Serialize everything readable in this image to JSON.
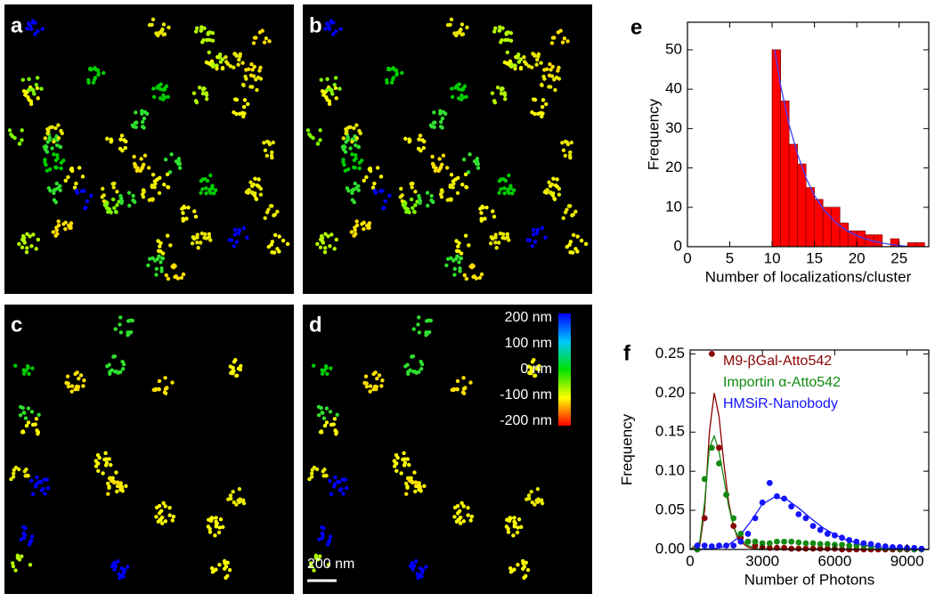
{
  "panels": {
    "a": "a",
    "b": "b",
    "c": "c",
    "d": "d"
  },
  "colorbar": {
    "labels": [
      "200 nm",
      "100 nm",
      "0 nm",
      "-100 nm",
      "-200 nm"
    ]
  },
  "scale_bar": "200 nm",
  "chart_data": [
    {
      "type": "histogram",
      "panel_label": "e",
      "xlabel": "Number of localizations/cluster",
      "ylabel": "Frequency",
      "color": "#ff0000",
      "bins": [
        10,
        11,
        12,
        13,
        14,
        15,
        16,
        17,
        18,
        19,
        20,
        21,
        22,
        23,
        24,
        25,
        26,
        27,
        28
      ],
      "values": [
        50,
        37,
        26,
        21,
        15,
        12,
        10,
        10,
        6,
        4,
        4,
        3,
        3,
        0,
        2,
        0,
        1,
        1
      ],
      "fit": {
        "color": "#4040ff",
        "x": [
          10.3,
          11,
          12,
          13,
          14,
          15,
          16,
          17,
          18,
          19,
          20,
          21,
          22,
          23,
          24,
          25,
          26
        ],
        "values": [
          50,
          41,
          31,
          23.5,
          17.5,
          13,
          9.7,
          7.2,
          5.3,
          3.9,
          2.8,
          2,
          1.4,
          0.9,
          0.6,
          0.3,
          0.1
        ]
      },
      "xlim": [
        0,
        28.5
      ],
      "xticks": [
        0,
        5,
        10,
        15,
        20,
        25
      ],
      "ylim": [
        0,
        57
      ],
      "yticks": [
        0,
        10,
        20,
        30,
        40,
        50
      ]
    },
    {
      "type": "scatter",
      "panel_label": "f",
      "xlabel": "Number of Photons",
      "ylabel": "Frequency",
      "series": [
        {
          "name": "M9-βGal-Atto542",
          "color": "#8b0000",
          "x": [
            300,
            600,
            900,
            1200,
            1500,
            1800,
            2100,
            2400,
            2700,
            3000,
            3300,
            3600,
            3900,
            4200,
            4500,
            4800,
            5100,
            5400,
            5700,
            6000,
            6300,
            6600,
            6900,
            7200,
            7500,
            7800,
            8100,
            8400,
            8700,
            9000,
            9300,
            9600
          ],
          "values": [
            0.0,
            0.04,
            0.25,
            0.13,
            0.07,
            0.03,
            0.015,
            0.01,
            0.005,
            0.003,
            0.002,
            0.002,
            0.002,
            0.001,
            0.001,
            0.001,
            0.001,
            0.001,
            0.001,
            0.001,
            0.0,
            0.0,
            0.0,
            0.0,
            0.0,
            0.0,
            0.0,
            0.0,
            0.0,
            0.0,
            0.0,
            0.0
          ]
        },
        {
          "name": "Importin α-Atto542",
          "color": "#138a13",
          "x": [
            300,
            600,
            900,
            1200,
            1500,
            1800,
            2100,
            2400,
            2700,
            3000,
            3300,
            3600,
            3900,
            4200,
            4500,
            4800,
            5100,
            5400,
            5700,
            6000,
            6300,
            6600,
            6900,
            7200,
            7500,
            7800,
            8100,
            8400,
            8700,
            9000,
            9300,
            9600
          ],
          "values": [
            0.0,
            0.09,
            0.13,
            0.11,
            0.07,
            0.04,
            0.02,
            0.01,
            0.01,
            0.008,
            0.008,
            0.01,
            0.01,
            0.01,
            0.009,
            0.008,
            0.008,
            0.007,
            0.007,
            0.006,
            0.006,
            0.005,
            0.005,
            0.005,
            0.004,
            0.003,
            0.002,
            0.002,
            0.001,
            0.001,
            0.0,
            0.0
          ]
        },
        {
          "name": "HMSiR-Nanobody",
          "color": "#1414ff",
          "x": [
            300,
            600,
            900,
            1200,
            1500,
            1800,
            2100,
            2400,
            2700,
            3000,
            3300,
            3600,
            3900,
            4200,
            4500,
            4800,
            5100,
            5400,
            5700,
            6000,
            6300,
            6600,
            6900,
            7200,
            7500,
            7800,
            8100,
            8400,
            8700,
            9000,
            9300,
            9600
          ],
          "values": [
            0.005,
            0.005,
            0.004,
            0.005,
            0.005,
            0.005,
            0.01,
            0.02,
            0.04,
            0.06,
            0.085,
            0.068,
            0.065,
            0.055,
            0.045,
            0.04,
            0.03,
            0.025,
            0.02,
            0.018,
            0.015,
            0.012,
            0.01,
            0.008,
            0.007,
            0.005,
            0.004,
            0.003,
            0.003,
            0.002,
            0.002,
            0.001
          ]
        }
      ],
      "fits": [
        {
          "color": "#8b0000",
          "x": [
            0,
            400,
            600,
            800,
            1000,
            1200,
            1400,
            1600,
            1800,
            2000,
            2400,
            2800,
            9900
          ],
          "values": [
            0,
            0.005,
            0.05,
            0.15,
            0.2,
            0.17,
            0.11,
            0.06,
            0.03,
            0.012,
            0.003,
            0,
            0
          ]
        },
        {
          "color": "#138a13",
          "x": [
            0,
            400,
            600,
            800,
            1000,
            1200,
            1400,
            1600,
            1800,
            2000,
            2400,
            2800,
            9900
          ],
          "values": [
            0,
            0.01,
            0.06,
            0.13,
            0.145,
            0.125,
            0.09,
            0.055,
            0.03,
            0.015,
            0.005,
            0.001,
            0
          ]
        },
        {
          "color": "#1414ff",
          "x": [
            0,
            1000,
            1500,
            2000,
            2500,
            3000,
            3500,
            4000,
            4500,
            5000,
            5500,
            6000,
            6500,
            7000,
            7500,
            8000,
            9000,
            9900
          ],
          "values": [
            0,
            0.001,
            0.004,
            0.015,
            0.035,
            0.058,
            0.067,
            0.064,
            0.053,
            0.04,
            0.028,
            0.019,
            0.012,
            0.007,
            0.004,
            0.002,
            0.001,
            0
          ]
        }
      ],
      "xlim": [
        0,
        9900
      ],
      "xticks": [
        0,
        3000,
        6000,
        9000
      ],
      "ylim": [
        0,
        0.255
      ],
      "yticks": [
        {
          "value": 0,
          "label": "0.00"
        },
        {
          "value": 0.05,
          "label": "0.05"
        },
        {
          "value": 0.1,
          "label": "0.10"
        },
        {
          "value": 0.15,
          "label": "0.15"
        },
        {
          "value": 0.2,
          "label": "0.20"
        },
        {
          "value": 0.25,
          "label": "0.25"
        }
      ]
    }
  ]
}
